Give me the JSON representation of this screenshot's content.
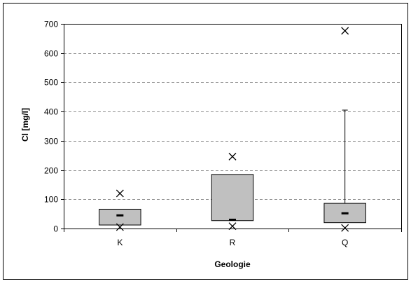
{
  "chart_data": {
    "type": "box",
    "title": "",
    "xlabel": "Geologie",
    "ylabel": "Cl [mg/l]",
    "ylim": [
      0,
      700
    ],
    "yticks": [
      0,
      100,
      200,
      300,
      400,
      500,
      600,
      700
    ],
    "grid": "horizontal dashed",
    "legend": "none",
    "categories": [
      "K",
      "R",
      "Q"
    ],
    "boxes": [
      {
        "category": "K",
        "q1": 12,
        "median": 45,
        "q3": 66,
        "whisker_high": null,
        "outliers_high": [
          120
        ],
        "outliers_low": [
          5
        ]
      },
      {
        "category": "R",
        "q1": 27,
        "median": 30,
        "q3": 185,
        "whisker_high": null,
        "outliers_high": [
          246
        ],
        "outliers_low": [
          8
        ]
      },
      {
        "category": "Q",
        "q1": 20,
        "median": 52,
        "q3": 86,
        "whisker_high": 405,
        "outliers_high": [
          676
        ],
        "outliers_low": [
          2
        ]
      }
    ],
    "colors": {
      "box_fill": "#c0c0c0",
      "box_stroke": "#000000",
      "grid": "#8c8c8c",
      "frame": "#000000"
    }
  }
}
